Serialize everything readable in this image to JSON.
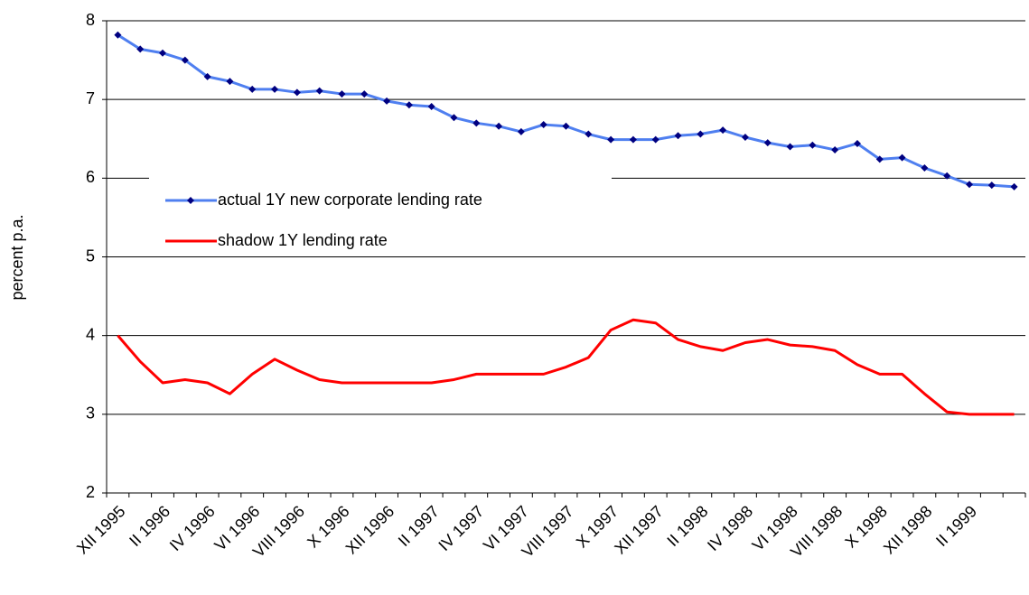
{
  "chart_data": {
    "type": "line",
    "y_label": "percent p.a.",
    "categories": [
      "XII 1995",
      null,
      "II 1996",
      null,
      "IV 1996",
      null,
      "VI 1996",
      null,
      "VIII 1996",
      null,
      "X 1996",
      null,
      "XII 1996",
      null,
      "II 1997",
      null,
      "IV 1997",
      null,
      "VI 1997",
      null,
      "VIII 1997",
      null,
      "X 1997",
      null,
      "XII 1997",
      null,
      "II 1998",
      null,
      "IV 1998",
      null,
      "VI 1998",
      null,
      "VIII 1998",
      null,
      "X 1998",
      null,
      "XII 1998",
      null,
      "II 1999",
      null,
      null
    ],
    "series": [
      {
        "name": "actual 1Y new corporate lending rate",
        "color": "#4f7ff0",
        "marker_color": "#000080",
        "marker": true,
        "values": [
          7.82,
          7.64,
          7.59,
          7.5,
          7.29,
          7.23,
          7.13,
          7.13,
          7.09,
          7.11,
          7.07,
          7.07,
          6.98,
          6.93,
          6.91,
          6.77,
          6.7,
          6.66,
          6.59,
          6.68,
          6.66,
          6.56,
          6.49,
          6.49,
          6.49,
          6.54,
          6.56,
          6.61,
          6.52,
          6.45,
          6.4,
          6.42,
          6.36,
          6.44,
          6.24,
          6.26,
          6.13,
          6.03,
          5.92,
          5.91,
          5.89
        ]
      },
      {
        "name": "shadow 1Y lending rate",
        "color": "#ff0000",
        "marker": false,
        "values": [
          4.0,
          3.67,
          3.4,
          3.44,
          3.4,
          3.26,
          3.51,
          3.7,
          3.56,
          3.44,
          3.4,
          3.4,
          3.4,
          3.4,
          3.4,
          3.44,
          3.51,
          3.51,
          3.51,
          3.51,
          3.6,
          3.72,
          4.07,
          4.2,
          4.16,
          3.95,
          3.86,
          3.81,
          3.91,
          3.95,
          3.88,
          3.86,
          3.81,
          3.63,
          3.51,
          3.51,
          3.26,
          3.03,
          3.0,
          3.0,
          3.0
        ]
      }
    ],
    "ylim": [
      2,
      8
    ],
    "yticks": [
      2,
      3,
      4,
      5,
      6,
      7,
      8
    ],
    "grid": true
  }
}
